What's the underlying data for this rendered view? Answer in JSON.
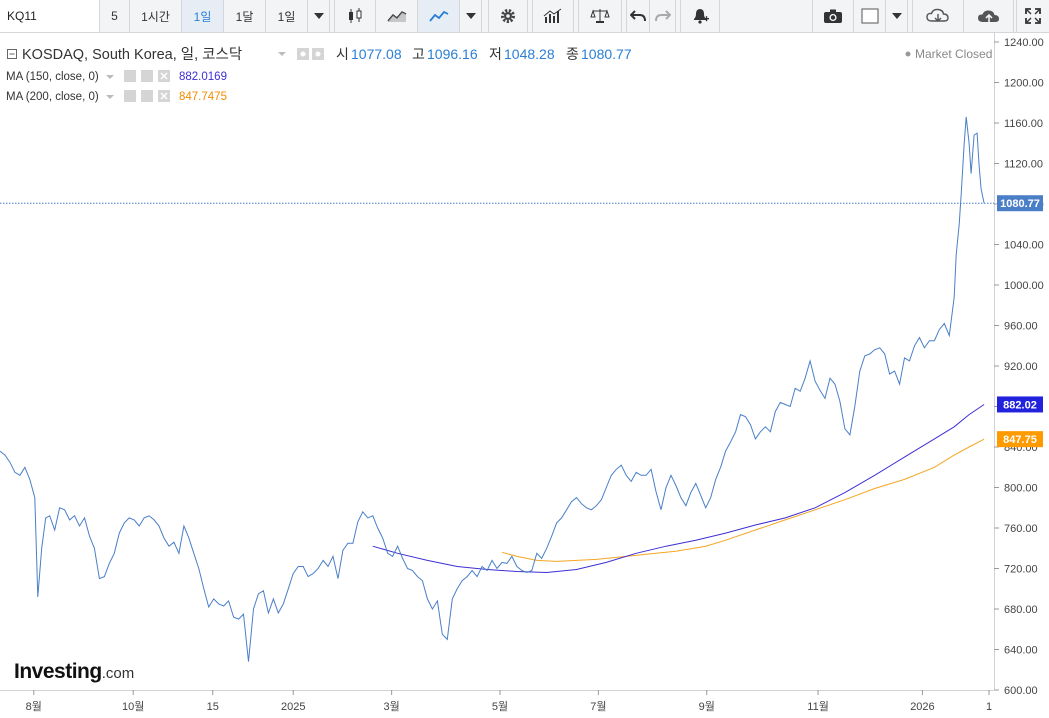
{
  "toolbar": {
    "symbol": "KQ11",
    "intervals": [
      "5",
      "1시간",
      "1일",
      "1달",
      "1일"
    ],
    "active_interval": 2
  },
  "legend": {
    "title": "KOSDAQ, South Korea, 일, 코스닥",
    "open_label": "시",
    "open": "1077.08",
    "high_label": "고",
    "high": "1096.16",
    "low_label": "저",
    "low": "1048.28",
    "close_label": "종",
    "close": "1080.77",
    "ma1_label": "MA (150, close, 0)",
    "ma1_value": "882.0169",
    "ma2_label": "MA (200, close, 0)",
    "ma2_value": "847.7475",
    "market_status": "Market Closed"
  },
  "colors": {
    "price": "#4a7fc8",
    "ma150": "#3d2fd4",
    "ma200": "#f5a623",
    "accent": "#2a7fd4"
  },
  "logo": {
    "name": "Investing",
    "suffix": ".com"
  },
  "chart_data": {
    "type": "line",
    "ylim": [
      600,
      1240
    ],
    "y_ticks": [
      600,
      640,
      680,
      720,
      760,
      800,
      840,
      880,
      920,
      960,
      1000,
      1040,
      1080,
      1120,
      1160,
      1200,
      1240
    ],
    "x_ticks": [
      {
        "label": "8월",
        "t": 0.034
      },
      {
        "label": "10월",
        "t": 0.134
      },
      {
        "label": "15",
        "t": 0.214
      },
      {
        "label": "2025",
        "t": 0.295
      },
      {
        "label": "3월",
        "t": 0.394
      },
      {
        "label": "5월",
        "t": 0.503
      },
      {
        "label": "7월",
        "t": 0.602
      },
      {
        "label": "9월",
        "t": 0.711
      },
      {
        "label": "11월",
        "t": 0.823
      },
      {
        "label": "2026",
        "t": 0.928
      },
      {
        "label": "1",
        "t": 0.995
      }
    ],
    "current_price_label": "1080.77",
    "ma150_label": "882.02",
    "ma200_label": "847.75",
    "series": [
      {
        "name": "KOSDAQ",
        "points": [
          [
            0,
            836
          ],
          [
            0.005,
            832
          ],
          [
            0.01,
            825
          ],
          [
            0.015,
            815
          ],
          [
            0.02,
            812
          ],
          [
            0.025,
            820
          ],
          [
            0.03,
            808
          ],
          [
            0.035,
            790
          ],
          [
            0.038,
            692
          ],
          [
            0.042,
            740
          ],
          [
            0.046,
            770
          ],
          [
            0.05,
            772
          ],
          [
            0.055,
            758
          ],
          [
            0.06,
            780
          ],
          [
            0.065,
            778
          ],
          [
            0.07,
            768
          ],
          [
            0.075,
            772
          ],
          [
            0.08,
            762
          ],
          [
            0.085,
            770
          ],
          [
            0.09,
            752
          ],
          [
            0.095,
            740
          ],
          [
            0.1,
            710
          ],
          [
            0.105,
            712
          ],
          [
            0.11,
            725
          ],
          [
            0.115,
            735
          ],
          [
            0.12,
            755
          ],
          [
            0.125,
            765
          ],
          [
            0.13,
            770
          ],
          [
            0.135,
            768
          ],
          [
            0.14,
            762
          ],
          [
            0.145,
            770
          ],
          [
            0.15,
            772
          ],
          [
            0.155,
            768
          ],
          [
            0.16,
            762
          ],
          [
            0.165,
            750
          ],
          [
            0.17,
            742
          ],
          [
            0.175,
            746
          ],
          [
            0.18,
            735
          ],
          [
            0.185,
            762
          ],
          [
            0.19,
            750
          ],
          [
            0.195,
            735
          ],
          [
            0.2,
            720
          ],
          [
            0.205,
            700
          ],
          [
            0.21,
            682
          ],
          [
            0.215,
            690
          ],
          [
            0.22,
            685
          ],
          [
            0.225,
            683
          ],
          [
            0.23,
            688
          ],
          [
            0.235,
            672
          ],
          [
            0.24,
            670
          ],
          [
            0.245,
            675
          ],
          [
            0.25,
            628
          ],
          [
            0.255,
            680
          ],
          [
            0.26,
            695
          ],
          [
            0.265,
            698
          ],
          [
            0.27,
            676
          ],
          [
            0.275,
            690
          ],
          [
            0.28,
            676
          ],
          [
            0.285,
            685
          ],
          [
            0.29,
            700
          ],
          [
            0.295,
            715
          ],
          [
            0.3,
            722
          ],
          [
            0.305,
            722
          ],
          [
            0.31,
            712
          ],
          [
            0.315,
            715
          ],
          [
            0.32,
            720
          ],
          [
            0.325,
            728
          ],
          [
            0.33,
            722
          ],
          [
            0.335,
            732
          ],
          [
            0.34,
            710
          ],
          [
            0.345,
            738
          ],
          [
            0.35,
            745
          ],
          [
            0.355,
            745
          ],
          [
            0.36,
            766
          ],
          [
            0.365,
            776
          ],
          [
            0.37,
            770
          ],
          [
            0.375,
            772
          ],
          [
            0.38,
            760
          ],
          [
            0.385,
            750
          ],
          [
            0.39,
            735
          ],
          [
            0.395,
            732
          ],
          [
            0.4,
            742
          ],
          [
            0.405,
            730
          ],
          [
            0.41,
            720
          ],
          [
            0.415,
            718
          ],
          [
            0.42,
            712
          ],
          [
            0.425,
            708
          ],
          [
            0.43,
            690
          ],
          [
            0.435,
            680
          ],
          [
            0.44,
            688
          ],
          [
            0.445,
            655
          ],
          [
            0.45,
            650
          ],
          [
            0.455,
            690
          ],
          [
            0.46,
            700
          ],
          [
            0.465,
            708
          ],
          [
            0.47,
            712
          ],
          [
            0.475,
            718
          ],
          [
            0.48,
            712
          ],
          [
            0.485,
            722
          ],
          [
            0.49,
            718
          ],
          [
            0.495,
            728
          ],
          [
            0.5,
            720
          ],
          [
            0.505,
            726
          ],
          [
            0.51,
            725
          ],
          [
            0.515,
            732
          ],
          [
            0.52,
            722
          ],
          [
            0.525,
            718
          ],
          [
            0.53,
            716
          ],
          [
            0.535,
            718
          ],
          [
            0.54,
            735
          ],
          [
            0.545,
            730
          ],
          [
            0.55,
            740
          ],
          [
            0.555,
            752
          ],
          [
            0.56,
            765
          ],
          [
            0.565,
            770
          ],
          [
            0.57,
            778
          ],
          [
            0.575,
            786
          ],
          [
            0.58,
            790
          ],
          [
            0.585,
            784
          ],
          [
            0.59,
            780
          ],
          [
            0.595,
            778
          ],
          [
            0.6,
            782
          ],
          [
            0.605,
            788
          ],
          [
            0.61,
            800
          ],
          [
            0.615,
            812
          ],
          [
            0.62,
            818
          ],
          [
            0.625,
            822
          ],
          [
            0.63,
            812
          ],
          [
            0.635,
            806
          ],
          [
            0.64,
            815
          ],
          [
            0.645,
            812
          ],
          [
            0.65,
            812
          ],
          [
            0.655,
            818
          ],
          [
            0.66,
            796
          ],
          [
            0.665,
            778
          ],
          [
            0.67,
            800
          ],
          [
            0.675,
            812
          ],
          [
            0.68,
            802
          ],
          [
            0.685,
            790
          ],
          [
            0.69,
            782
          ],
          [
            0.695,
            795
          ],
          [
            0.7,
            804
          ],
          [
            0.705,
            792
          ],
          [
            0.71,
            780
          ],
          [
            0.715,
            790
          ],
          [
            0.72,
            808
          ],
          [
            0.725,
            820
          ],
          [
            0.73,
            836
          ],
          [
            0.735,
            845
          ],
          [
            0.74,
            855
          ],
          [
            0.745,
            872
          ],
          [
            0.75,
            870
          ],
          [
            0.755,
            862
          ],
          [
            0.76,
            848
          ],
          [
            0.765,
            855
          ],
          [
            0.77,
            860
          ],
          [
            0.775,
            855
          ],
          [
            0.78,
            875
          ],
          [
            0.785,
            884
          ],
          [
            0.79,
            882
          ],
          [
            0.795,
            880
          ],
          [
            0.8,
            898
          ],
          [
            0.805,
            895
          ],
          [
            0.81,
            908
          ],
          [
            0.815,
            925
          ],
          [
            0.82,
            905
          ],
          [
            0.825,
            896
          ],
          [
            0.83,
            888
          ],
          [
            0.835,
            908
          ],
          [
            0.84,
            902
          ],
          [
            0.845,
            885
          ],
          [
            0.85,
            858
          ],
          [
            0.855,
            852
          ],
          [
            0.86,
            880
          ],
          [
            0.865,
            915
          ],
          [
            0.87,
            930
          ],
          [
            0.875,
            932
          ],
          [
            0.88,
            936
          ],
          [
            0.885,
            938
          ],
          [
            0.89,
            932
          ],
          [
            0.895,
            912
          ],
          [
            0.9,
            915
          ],
          [
            0.905,
            902
          ],
          [
            0.91,
            928
          ],
          [
            0.915,
            925
          ],
          [
            0.92,
            940
          ],
          [
            0.925,
            948
          ],
          [
            0.93,
            938
          ],
          [
            0.935,
            945
          ],
          [
            0.94,
            945
          ],
          [
            0.945,
            956
          ],
          [
            0.95,
            962
          ],
          [
            0.955,
            950
          ],
          [
            0.96,
            988
          ],
          [
            0.962,
            1030
          ],
          [
            0.965,
            1060
          ],
          [
            0.967,
            1090
          ],
          [
            0.97,
            1140
          ],
          [
            0.972,
            1166
          ],
          [
            0.975,
            1140
          ],
          [
            0.977,
            1110
          ],
          [
            0.98,
            1148
          ],
          [
            0.983,
            1150
          ],
          [
            0.985,
            1118
          ],
          [
            0.987,
            1095
          ],
          [
            0.99,
            1080.77
          ]
        ]
      },
      {
        "name": "MA (150, close, 0)",
        "points": [
          [
            0.375,
            742
          ],
          [
            0.4,
            735
          ],
          [
            0.43,
            728
          ],
          [
            0.46,
            722
          ],
          [
            0.49,
            719
          ],
          [
            0.52,
            717
          ],
          [
            0.55,
            716
          ],
          [
            0.58,
            719
          ],
          [
            0.61,
            726
          ],
          [
            0.64,
            735
          ],
          [
            0.67,
            742
          ],
          [
            0.7,
            748
          ],
          [
            0.73,
            755
          ],
          [
            0.76,
            763
          ],
          [
            0.79,
            770
          ],
          [
            0.82,
            780
          ],
          [
            0.85,
            795
          ],
          [
            0.88,
            812
          ],
          [
            0.91,
            830
          ],
          [
            0.94,
            848
          ],
          [
            0.96,
            860
          ],
          [
            0.975,
            872
          ],
          [
            0.99,
            882.02
          ]
        ]
      },
      {
        "name": "MA (200, close, 0)",
        "points": [
          [
            0.505,
            736
          ],
          [
            0.52,
            732
          ],
          [
            0.54,
            728
          ],
          [
            0.56,
            727
          ],
          [
            0.58,
            728
          ],
          [
            0.6,
            729
          ],
          [
            0.62,
            731
          ],
          [
            0.65,
            734
          ],
          [
            0.68,
            737
          ],
          [
            0.71,
            742
          ],
          [
            0.73,
            748
          ],
          [
            0.76,
            758
          ],
          [
            0.79,
            768
          ],
          [
            0.82,
            778
          ],
          [
            0.85,
            788
          ],
          [
            0.88,
            799
          ],
          [
            0.91,
            808
          ],
          [
            0.94,
            820
          ],
          [
            0.96,
            832
          ],
          [
            0.975,
            840
          ],
          [
            0.99,
            847.75
          ]
        ]
      }
    ]
  }
}
